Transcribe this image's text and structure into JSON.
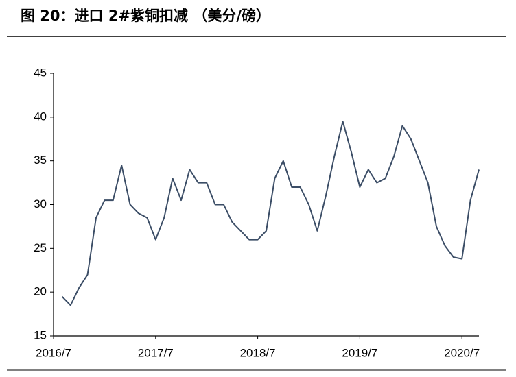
{
  "chart_data": {
    "type": "line",
    "title": "图 20：进口 2#紫铜扣减 （美分/磅）",
    "x": [
      1,
      2,
      3,
      4,
      5,
      6,
      7,
      8,
      9,
      10,
      11,
      12,
      13,
      14,
      15,
      16,
      17,
      18,
      19,
      20,
      21,
      22,
      23,
      24,
      25,
      26,
      27,
      28,
      29,
      30,
      31,
      32,
      33,
      34,
      35,
      36,
      37,
      38,
      39,
      40,
      41,
      42,
      43,
      44,
      45,
      46,
      47,
      48,
      49,
      50
    ],
    "series": [
      {
        "name": "进口 2#紫铜扣减",
        "color": "#3b4d66",
        "values": [
          19.5,
          18.5,
          20.5,
          22,
          28.5,
          30.5,
          30.5,
          34.5,
          30,
          29,
          28.5,
          26,
          28.5,
          33,
          30.5,
          34,
          32.5,
          32.5,
          30,
          30,
          28,
          27,
          26,
          26,
          27,
          33,
          35,
          32,
          32,
          30,
          27,
          31,
          35.5,
          39.5,
          36,
          32,
          34,
          32.5,
          33,
          35.5,
          39,
          37.5,
          35,
          32.5,
          27.5,
          25.3,
          24,
          23.8,
          30.5,
          34
        ]
      }
    ],
    "xlim": [
      0,
      50
    ],
    "xticks": [
      {
        "value": 0,
        "label": "2016/7"
      },
      {
        "value": 12,
        "label": "2017/7"
      },
      {
        "value": 24,
        "label": "2018/7"
      },
      {
        "value": 36,
        "label": "2019/7"
      },
      {
        "value": 48,
        "label": "2020/7"
      }
    ],
    "ylim": [
      15,
      45
    ],
    "yticks": [
      15,
      20,
      25,
      30,
      35,
      40,
      45
    ]
  }
}
